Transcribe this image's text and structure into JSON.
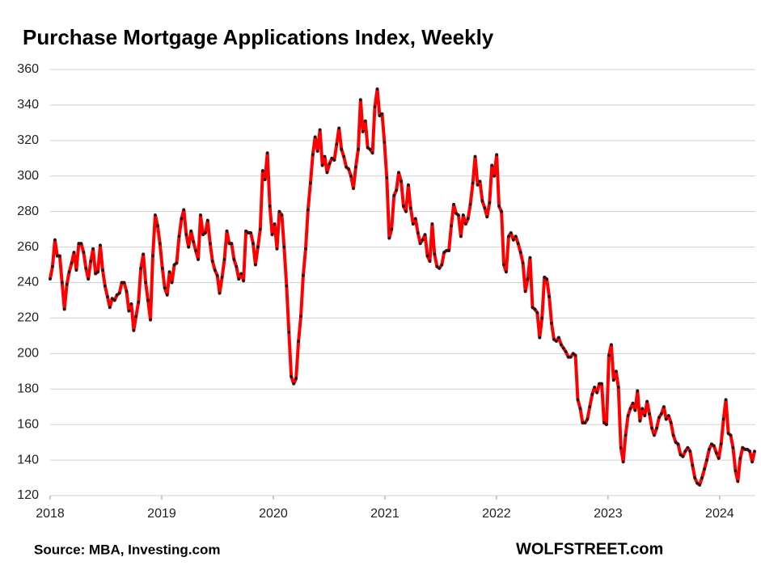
{
  "chart_data": {
    "type": "line",
    "title": "Purchase Mortgage Applications Index, Weekly",
    "source": "Source: MBA, Investing.com",
    "brand": "WOLFSTREET.com",
    "color": "#ff0000",
    "marker_color": "#1a1a1a",
    "grid": true,
    "xlim": [
      2018,
      2024.32
    ],
    "xticks": [
      2018,
      2019,
      2020,
      2021,
      2022,
      2023,
      2024
    ],
    "ylim": [
      120,
      360
    ],
    "yticks": [
      120,
      140,
      160,
      180,
      200,
      220,
      240,
      260,
      280,
      300,
      320,
      340,
      360
    ],
    "x": [
      2018,
      2018.021,
      2018.043,
      2018.064,
      2018.086,
      2018.107,
      2018.128,
      2018.15,
      2018.171,
      2018.193,
      2018.214,
      2018.235,
      2018.257,
      2018.278,
      2018.3,
      2018.321,
      2018.342,
      2018.364,
      2018.385,
      2018.407,
      2018.428,
      2018.449,
      2018.471,
      2018.492,
      2018.514,
      2018.535,
      2018.556,
      2018.578,
      2018.599,
      2018.621,
      2018.642,
      2018.663,
      2018.685,
      2018.706,
      2018.728,
      2018.749,
      2018.77,
      2018.792,
      2018.813,
      2018.835,
      2018.856,
      2018.877,
      2018.899,
      2018.92,
      2018.942,
      2018.963,
      2018.984,
      2019.006,
      2019.027,
      2019.049,
      2019.07,
      2019.091,
      2019.113,
      2019.134,
      2019.156,
      2019.177,
      2019.198,
      2019.22,
      2019.241,
      2019.263,
      2019.284,
      2019.305,
      2019.327,
      2019.348,
      2019.37,
      2019.391,
      2019.412,
      2019.434,
      2019.455,
      2019.477,
      2019.498,
      2019.519,
      2019.541,
      2019.562,
      2019.584,
      2019.605,
      2019.626,
      2019.648,
      2019.669,
      2019.691,
      2019.712,
      2019.733,
      2019.755,
      2019.776,
      2019.798,
      2019.819,
      2019.84,
      2019.862,
      2019.883,
      2019.905,
      2019.926,
      2019.947,
      2019.969,
      2019.99,
      2020.012,
      2020.033,
      2020.054,
      2020.076,
      2020.097,
      2020.119,
      2020.14,
      2020.161,
      2020.183,
      2020.204,
      2020.226,
      2020.247,
      2020.268,
      2020.29,
      2020.311,
      2020.333,
      2020.354,
      2020.375,
      2020.397,
      2020.418,
      2020.44,
      2020.461,
      2020.482,
      2020.504,
      2020.525,
      2020.547,
      2020.568,
      2020.589,
      2020.611,
      2020.632,
      2020.654,
      2020.675,
      2020.696,
      2020.718,
      2020.739,
      2020.761,
      2020.782,
      2020.803,
      2020.825,
      2020.846,
      2020.868,
      2020.889,
      2020.91,
      2020.932,
      2020.953,
      2020.975,
      2020.996,
      2021.017,
      2021.039,
      2021.06,
      2021.082,
      2021.103,
      2021.124,
      2021.146,
      2021.167,
      2021.189,
      2021.21,
      2021.231,
      2021.253,
      2021.274,
      2021.296,
      2021.317,
      2021.338,
      2021.36,
      2021.381,
      2021.403,
      2021.424,
      2021.445,
      2021.467,
      2021.488,
      2021.51,
      2021.531,
      2021.552,
      2021.574,
      2021.595,
      2021.617,
      2021.638,
      2021.659,
      2021.681,
      2021.702,
      2021.724,
      2021.745,
      2021.766,
      2021.788,
      2021.809,
      2021.831,
      2021.852,
      2021.873,
      2021.895,
      2021.916,
      2021.938,
      2021.959,
      2021.98,
      2022.002,
      2022.023,
      2022.045,
      2022.066,
      2022.087,
      2022.109,
      2022.13,
      2022.152,
      2022.173,
      2022.194,
      2022.216,
      2022.237,
      2022.259,
      2022.28,
      2022.301,
      2022.323,
      2022.344,
      2022.366,
      2022.387,
      2022.408,
      2022.43,
      2022.451,
      2022.473,
      2022.494,
      2022.515,
      2022.537,
      2022.558,
      2022.58,
      2022.601,
      2022.622,
      2022.644,
      2022.665,
      2022.687,
      2022.708,
      2022.729,
      2022.751,
      2022.772,
      2022.794,
      2022.815,
      2022.836,
      2022.858,
      2022.879,
      2022.901,
      2022.922,
      2022.943,
      2022.965,
      2022.986,
      2023.008,
      2023.029,
      2023.05,
      2023.072,
      2023.093,
      2023.115,
      2023.136,
      2023.157,
      2023.179,
      2023.2,
      2023.222,
      2023.243,
      2023.264,
      2023.286,
      2023.307,
      2023.329,
      2023.35,
      2023.371,
      2023.393,
      2023.414,
      2023.436,
      2023.457,
      2023.478,
      2023.5,
      2023.521,
      2023.543,
      2023.564,
      2023.585,
      2023.607,
      2023.628,
      2023.65,
      2023.671,
      2023.692,
      2023.714,
      2023.735,
      2023.757,
      2023.778,
      2023.799,
      2023.821,
      2023.842,
      2023.864,
      2023.885,
      2023.906,
      2023.928,
      2023.949,
      2023.971,
      2023.992,
      2024.013,
      2024.035,
      2024.056,
      2024.078,
      2024.099,
      2024.12,
      2024.142,
      2024.163,
      2024.185,
      2024.206,
      2024.227,
      2024.249,
      2024.27,
      2024.292,
      2024.313
    ],
    "values": [
      242,
      249,
      264,
      255,
      255,
      240,
      225,
      239,
      246,
      251,
      257,
      247,
      262,
      262,
      257,
      248,
      242,
      252,
      259,
      245,
      246,
      261,
      247,
      238,
      232,
      226,
      231,
      230,
      233,
      234,
      240,
      240,
      235,
      224,
      228,
      213,
      221,
      229,
      248,
      256,
      240,
      230,
      219,
      255,
      278,
      272,
      262,
      248,
      237,
      233,
      246,
      240,
      250,
      251,
      266,
      276,
      281,
      267,
      260,
      269,
      263,
      258,
      253,
      278,
      267,
      268,
      275,
      262,
      252,
      247,
      244,
      234,
      243,
      253,
      269,
      262,
      262,
      253,
      249,
      242,
      245,
      241,
      269,
      268,
      268,
      262,
      250,
      260,
      270,
      303,
      298,
      313,
      283,
      267,
      273,
      259,
      280,
      278,
      260,
      238,
      212,
      187,
      183,
      186,
      207,
      221,
      244,
      259,
      281,
      296,
      312,
      322,
      314,
      326,
      306,
      311,
      302,
      307,
      310,
      309,
      318,
      327,
      315,
      311,
      305,
      304,
      300,
      293,
      305,
      315,
      343,
      325,
      331,
      316,
      315,
      313,
      339,
      349,
      334,
      335,
      319,
      299,
      265,
      270,
      289,
      292,
      302,
      297,
      283,
      280,
      295,
      282,
      273,
      276,
      268,
      262,
      264,
      267,
      255,
      252,
      273,
      256,
      249,
      248,
      250,
      257,
      258,
      258,
      272,
      284,
      279,
      278,
      266,
      278,
      273,
      276,
      284,
      296,
      311,
      295,
      297,
      286,
      282,
      277,
      285,
      306,
      300,
      312,
      283,
      280,
      250,
      246,
      266,
      268,
      264,
      266,
      262,
      257,
      251,
      235,
      242,
      254,
      226,
      225,
      223,
      209,
      220,
      243,
      242,
      232,
      217,
      208,
      207,
      209,
      205,
      203,
      201,
      198,
      198,
      200,
      199,
      174,
      169,
      161,
      161,
      163,
      170,
      177,
      181,
      178,
      183,
      183,
      161,
      160,
      199,
      205,
      185,
      190,
      181,
      147,
      139,
      154,
      165,
      169,
      172,
      168,
      179,
      162,
      169,
      165,
      173,
      166,
      158,
      154,
      158,
      164,
      166,
      170,
      163,
      165,
      161,
      154,
      150,
      149,
      143,
      142,
      145,
      147,
      145,
      137,
      130,
      127,
      126,
      130,
      135,
      140,
      146,
      149,
      148,
      144,
      141,
      149,
      163,
      174,
      155,
      154,
      147,
      134,
      128,
      141,
      147,
      146,
      146,
      145,
      139,
      145
    ]
  }
}
